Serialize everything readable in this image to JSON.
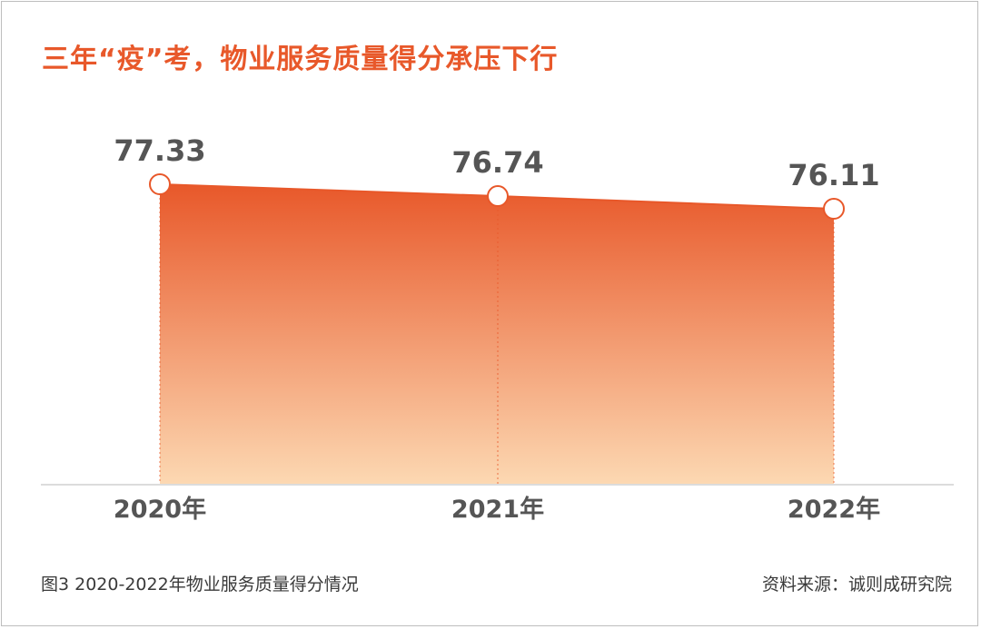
{
  "title": "三年“疫”考，物业服务质量得分承压下行",
  "caption": "图3 2020-2022年物业服务质量得分情况",
  "source": "资料来源：诚则成研究院",
  "colors": {
    "title": "#e8582a",
    "area_top": "#e8582a",
    "area_bottom": "#fcd8b2",
    "point_fill": "#ffffff",
    "point_stroke": "#e8582a",
    "label": "#555555",
    "axis": "#d0d0d0"
  },
  "chart_data": {
    "type": "area",
    "title": "三年“疫”考，物业服务质量得分承压下行",
    "categories": [
      "2020年",
      "2021年",
      "2022年"
    ],
    "values": [
      77.33,
      76.74,
      76.11
    ],
    "value_labels": [
      "77.33",
      "76.74",
      "76.11"
    ],
    "grid": false,
    "legend": "none"
  }
}
